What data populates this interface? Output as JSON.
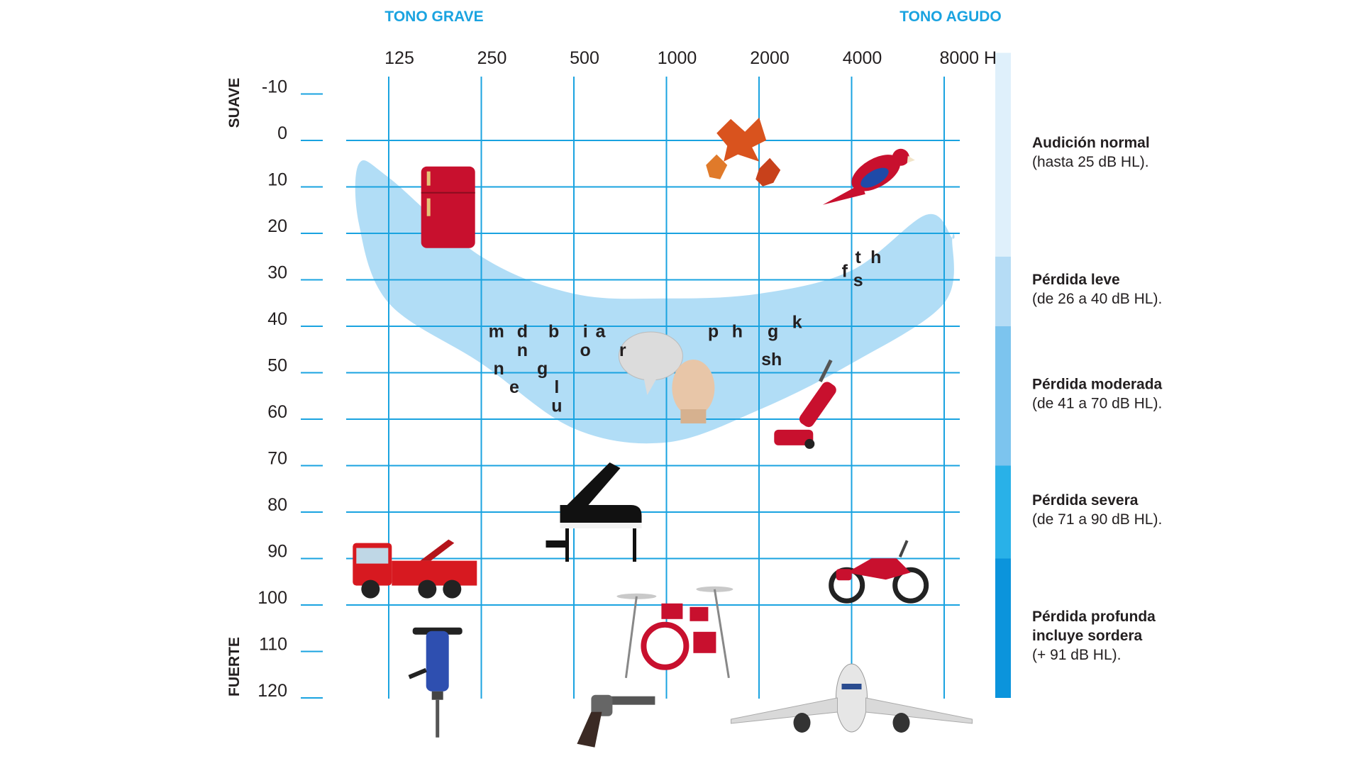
{
  "chart_data": {
    "type": "audiogram",
    "top_labels": {
      "low_pitch": "TONO GRAVE",
      "high_pitch": "TONO AGUDO"
    },
    "side_labels": {
      "soft": "SUAVE",
      "loud": "FUERTE"
    },
    "x_categories": [
      "125",
      "250",
      "500",
      "1000",
      "2000",
      "4000",
      "8000 Hz"
    ],
    "x_values_hz": [
      125,
      250,
      500,
      1000,
      2000,
      4000,
      8000
    ],
    "y_ticks": [
      "-10",
      "0",
      "10",
      "20",
      "30",
      "40",
      "50",
      "60",
      "70",
      "80",
      "90",
      "100",
      "110",
      "120"
    ],
    "ylim": [
      -10,
      120
    ],
    "y_inverted": true,
    "grid": true,
    "speech_banana": {
      "upper_edge": [
        [
          100,
          5
        ],
        [
          125,
          8
        ],
        [
          250,
          25
        ],
        [
          500,
          33
        ],
        [
          1000,
          34
        ],
        [
          2000,
          33
        ],
        [
          4000,
          28
        ],
        [
          7000,
          16
        ],
        [
          8500,
          21
        ]
      ],
      "lower_edge": [
        [
          8500,
          21
        ],
        [
          8000,
          35
        ],
        [
          4000,
          48
        ],
        [
          2000,
          58
        ],
        [
          1000,
          65
        ],
        [
          500,
          62
        ],
        [
          250,
          48
        ],
        [
          125,
          35
        ],
        [
          100,
          18
        ]
      ]
    },
    "phonemes": [
      {
        "text": "m",
        "hz": 280,
        "db": 41
      },
      {
        "text": "d",
        "hz": 340,
        "db": 41
      },
      {
        "text": "b",
        "hz": 430,
        "db": 41
      },
      {
        "text": "n",
        "hz": 340,
        "db": 45
      },
      {
        "text": "n",
        "hz": 285,
        "db": 49
      },
      {
        "text": "g",
        "hz": 395,
        "db": 49
      },
      {
        "text": "e",
        "hz": 320,
        "db": 53
      },
      {
        "text": "l",
        "hz": 440,
        "db": 53
      },
      {
        "text": "u",
        "hz": 440,
        "db": 57
      },
      {
        "text": "i",
        "hz": 545,
        "db": 41
      },
      {
        "text": "a",
        "hz": 610,
        "db": 41
      },
      {
        "text": "o",
        "hz": 545,
        "db": 45
      },
      {
        "text": "r",
        "hz": 720,
        "db": 45
      },
      {
        "text": "p",
        "hz": 1420,
        "db": 41
      },
      {
        "text": "h",
        "hz": 1700,
        "db": 41
      },
      {
        "text": "g",
        "hz": 2220,
        "db": 41
      },
      {
        "text": "s",
        "hz": 2110,
        "db": 47
      },
      {
        "text": "h",
        "hz": 2280,
        "db": 47
      },
      {
        "text": "k",
        "hz": 2660,
        "db": 39
      },
      {
        "text": "t",
        "hz": 4200,
        "db": 25
      },
      {
        "text": "h",
        "hz": 4800,
        "db": 25
      },
      {
        "text": "f",
        "hz": 3800,
        "db": 28
      },
      {
        "text": "s",
        "hz": 4200,
        "db": 30
      }
    ],
    "sound_sources": [
      {
        "name": "refrigerator",
        "hz": 195,
        "db": 14,
        "color": "#c8102e"
      },
      {
        "name": "leaves",
        "hz": 1800,
        "db": 3,
        "color": "#d9531e"
      },
      {
        "name": "parrot",
        "hz": 4800,
        "db": 7,
        "color": "#c8102e"
      },
      {
        "name": "speaking-person",
        "hz": 1100,
        "db": 51,
        "color": "#e8c6a8"
      },
      {
        "name": "vacuum-cleaner",
        "hz": 3000,
        "db": 58,
        "color": "#c8102e"
      },
      {
        "name": "piano",
        "hz": 620,
        "db": 80,
        "color": "#111111"
      },
      {
        "name": "tow-truck",
        "hz": 150,
        "db": 92,
        "color": "#d71920"
      },
      {
        "name": "motorcycle",
        "hz": 4900,
        "db": 93,
        "color": "#c8102e"
      },
      {
        "name": "drum-kit",
        "hz": 1100,
        "db": 105,
        "color": "#c8102e"
      },
      {
        "name": "jackhammer",
        "hz": 180,
        "db": 114,
        "color": "#2e4fb0"
      },
      {
        "name": "revolver",
        "hz": 650,
        "db": 123,
        "color": "#555555"
      },
      {
        "name": "airplane",
        "hz": 4000,
        "db": 120,
        "color": "#e6e6e6"
      }
    ],
    "legend": [
      {
        "title": "Audición normal",
        "desc": "(hasta 25 dB HL).",
        "range": [
          -10,
          25
        ],
        "color": "#dff0fb"
      },
      {
        "title": "Pérdida leve",
        "desc": "(de 26 a 40 dB HL).",
        "range": [
          25,
          40
        ],
        "color": "#b5dcf5"
      },
      {
        "title": "Pérdida moderada",
        "desc": "(de 41 a 70 dB HL).",
        "range": [
          40,
          70
        ],
        "color": "#7cc4ee"
      },
      {
        "title": "Pérdida severa",
        "desc": "(de 71 a 90 dB HL).",
        "range": [
          70,
          90
        ],
        "color": "#29b1e8"
      },
      {
        "title": "Pérdida profunda",
        "title2": "incluye sordera",
        "desc": "(+ 91 dB HL).",
        "range": [
          90,
          120
        ],
        "color": "#0b94dc"
      }
    ]
  },
  "colors": {
    "grid": "#1aa3e0",
    "top_label": "#1aa3e0",
    "banana": "#a9d9f5",
    "text": "#231f20"
  }
}
